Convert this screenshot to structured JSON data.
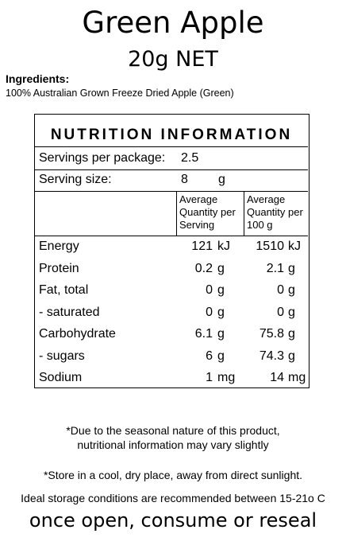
{
  "product": {
    "name": "Green Apple",
    "net_weight": "20g NET"
  },
  "ingredients": {
    "heading": "Ingredients:",
    "text": "100% Australian Grown Freeze Dried Apple (Green)"
  },
  "nutrition": {
    "title": "NUTRITION INFORMATION",
    "servings_per_package": {
      "label": "Servings per package:",
      "value": "2.5"
    },
    "serving_size": {
      "label": "Serving size:",
      "value": "8",
      "unit": "g"
    },
    "columns": {
      "per_serving": [
        "Average",
        "Quantity per",
        "Serving"
      ],
      "per_100g": [
        "Average",
        "Quantity per",
        "100 g"
      ]
    },
    "rows": [
      {
        "label": "Energy",
        "serving": "121",
        "serving_unit": "kJ",
        "per100": "1510",
        "per100_unit": "kJ"
      },
      {
        "label": "Protein",
        "serving": "0.2",
        "serving_unit": "g",
        "per100": "2.1",
        "per100_unit": "g"
      },
      {
        "label": "Fat, total",
        "serving": "0",
        "serving_unit": "g",
        "per100": "0",
        "per100_unit": "g"
      },
      {
        "label": "- saturated",
        "serving": "0",
        "serving_unit": "g",
        "per100": "0",
        "per100_unit": "g"
      },
      {
        "label": "Carbohydrate",
        "serving": "6.1",
        "serving_unit": "g",
        "per100": "75.8",
        "per100_unit": "g"
      },
      {
        "label": "- sugars",
        "serving": "6",
        "serving_unit": "g",
        "per100": "74.3",
        "per100_unit": "g"
      },
      {
        "label": "Sodium",
        "serving": "1",
        "serving_unit": "mg",
        "per100": "14",
        "per100_unit": "mg"
      }
    ]
  },
  "notes": {
    "seasonal_line1": "*Due to the seasonal nature of this product,",
    "seasonal_line2": "nutritional information may vary slightly",
    "storage": "*Store in a cool, dry place, away from direct sunlight.",
    "conditions": "Ideal storage conditions are recommended between 15-21o C",
    "reseal": "once open, consume or reseal"
  }
}
